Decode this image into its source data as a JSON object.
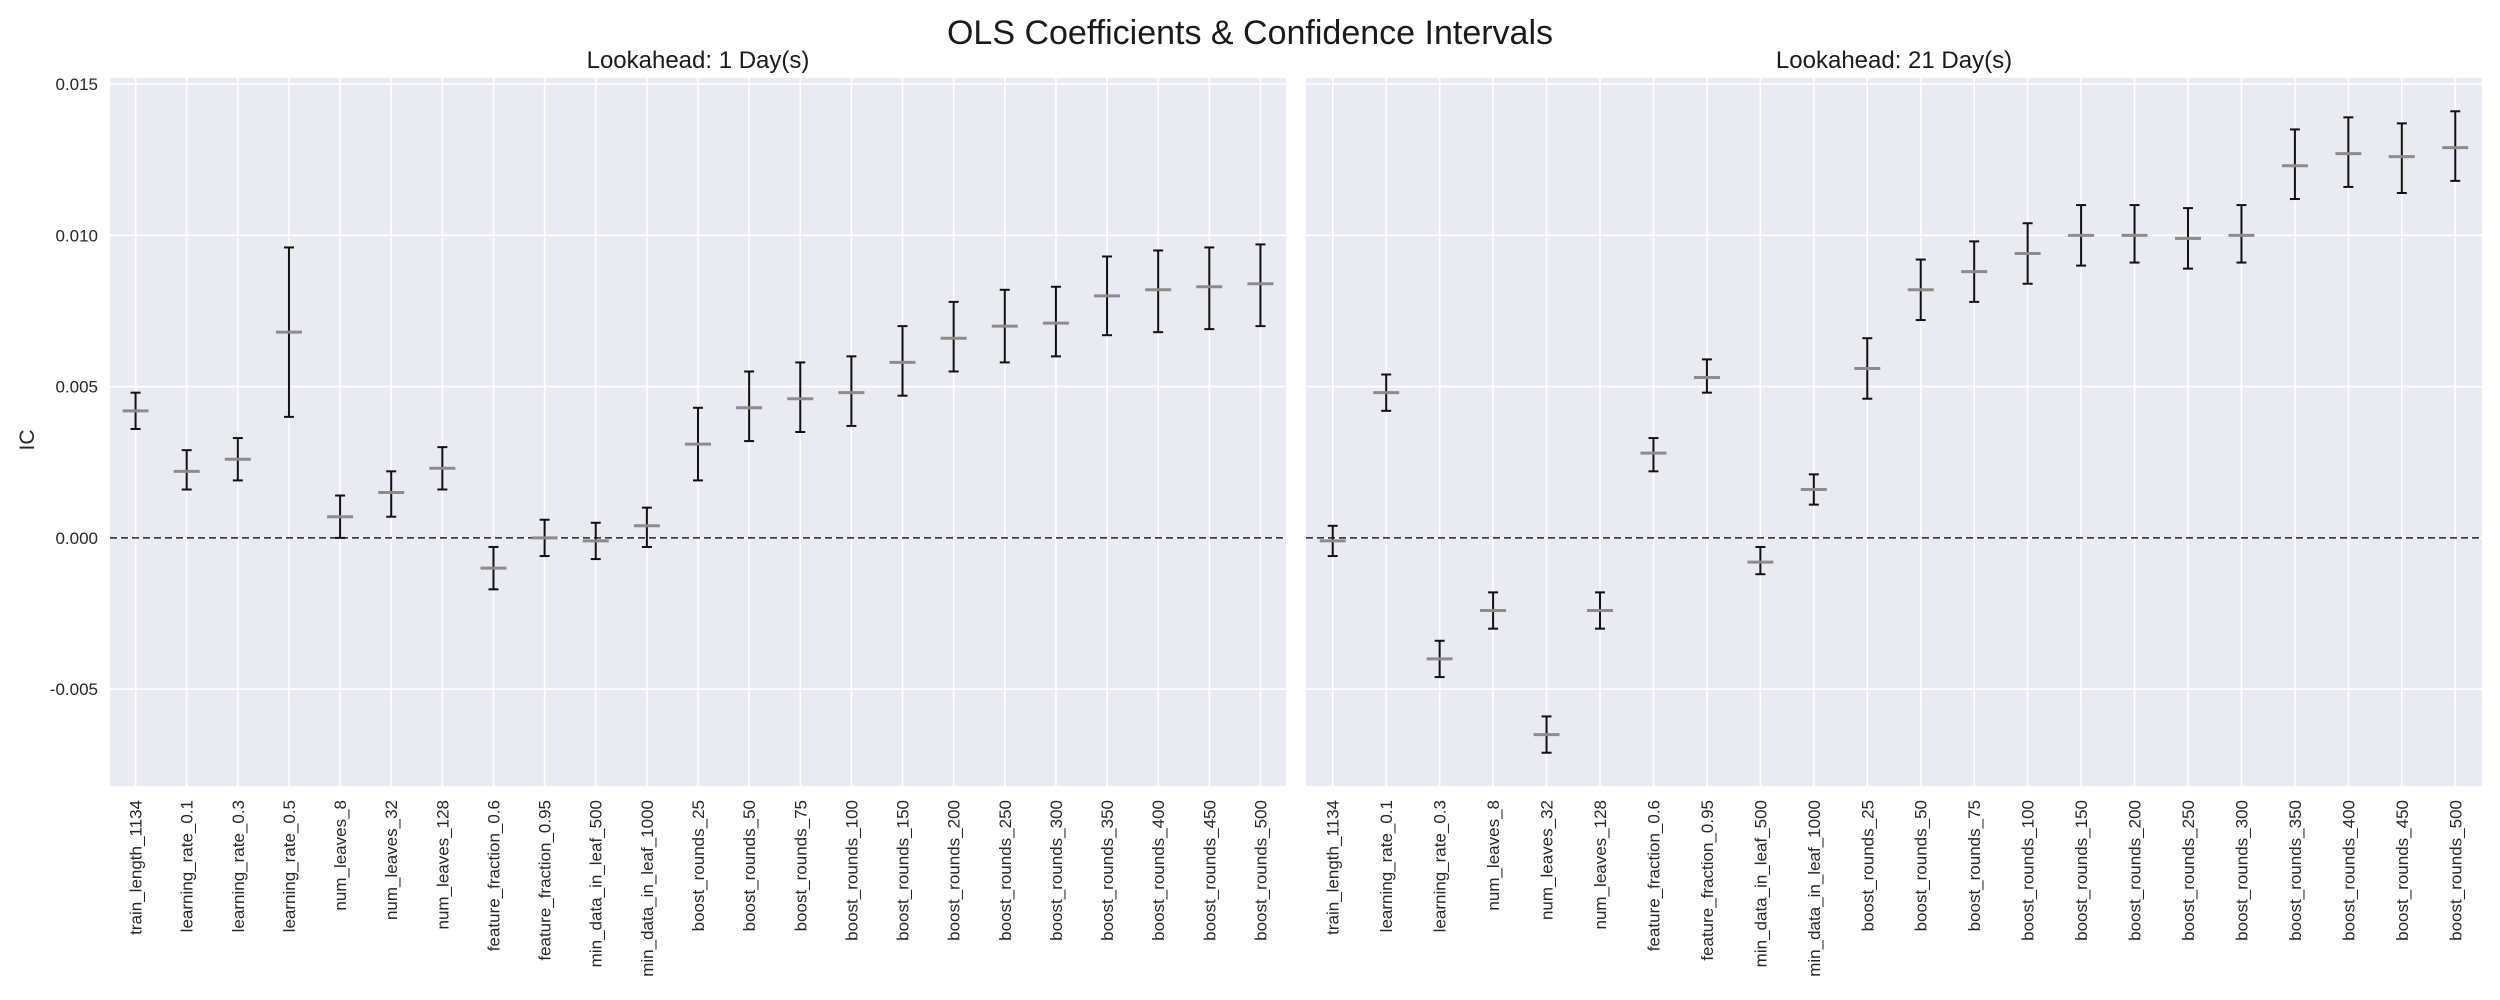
{
  "figure": {
    "title": "OLS Coefficients & Confidence Intervals"
  },
  "chart_data": [
    {
      "type": "errorbar",
      "title": "Lookahead: 1 Day(s)",
      "xlabel": "",
      "ylabel": "IC",
      "ylim": [
        -0.0082,
        0.0152
      ],
      "yticks": [
        "-0.005",
        "0.000",
        "0.005",
        "0.010",
        "0.015"
      ],
      "yticks_values": [
        -0.005,
        0.0,
        0.005,
        0.01,
        0.015
      ],
      "grid": true,
      "reference_line": 0.0,
      "categories": [
        "train_length_1134",
        "learning_rate_0.1",
        "learning_rate_0.3",
        "learning_rate_0.5",
        "num_leaves_8",
        "num_leaves_32",
        "num_leaves_128",
        "feature_fraction_0.6",
        "feature_fraction_0.95",
        "min_data_in_leaf_500",
        "min_data_in_leaf_1000",
        "boost_rounds_25",
        "boost_rounds_50",
        "boost_rounds_75",
        "boost_rounds_100",
        "boost_rounds_150",
        "boost_rounds_200",
        "boost_rounds_250",
        "boost_rounds_300",
        "boost_rounds_350",
        "boost_rounds_400",
        "boost_rounds_450",
        "boost_rounds_500"
      ],
      "coef": [
        0.0042,
        0.0022,
        0.0026,
        0.0068,
        0.0007,
        0.0015,
        0.0023,
        -0.001,
        0.0,
        -0.0001,
        0.0004,
        0.0031,
        0.0043,
        0.0046,
        0.0048,
        0.0058,
        0.0066,
        0.007,
        0.0071,
        0.008,
        0.0082,
        0.0083,
        0.0084
      ],
      "lower": [
        0.0036,
        0.0016,
        0.0019,
        0.004,
        0.0,
        0.0007,
        0.0016,
        -0.0017,
        -0.0006,
        -0.0007,
        -0.0003,
        0.0019,
        0.0032,
        0.0035,
        0.0037,
        0.0047,
        0.0055,
        0.0058,
        0.006,
        0.0067,
        0.0068,
        0.0069,
        0.007
      ],
      "upper": [
        0.0048,
        0.0029,
        0.0033,
        0.0096,
        0.0014,
        0.0022,
        0.003,
        -0.0003,
        0.0006,
        0.0005,
        0.001,
        0.0043,
        0.0055,
        0.0058,
        0.006,
        0.007,
        0.0078,
        0.0082,
        0.0083,
        0.0093,
        0.0095,
        0.0096,
        0.0097
      ]
    },
    {
      "type": "errorbar",
      "title": "Lookahead: 21 Day(s)",
      "xlabel": "",
      "ylabel": "",
      "ylim": [
        -0.0082,
        0.0152
      ],
      "yticks": [
        "-0.005",
        "0.000",
        "0.005",
        "0.010",
        "0.015"
      ],
      "yticks_values": [
        -0.005,
        0.0,
        0.005,
        0.01,
        0.015
      ],
      "grid": true,
      "reference_line": 0.0,
      "categories": [
        "train_length_1134",
        "learning_rate_0.1",
        "learning_rate_0.3",
        "num_leaves_8",
        "num_leaves_32",
        "num_leaves_128",
        "feature_fraction_0.6",
        "feature_fraction_0.95",
        "min_data_in_leaf_500",
        "min_data_in_leaf_1000",
        "boost_rounds_25",
        "boost_rounds_50",
        "boost_rounds_75",
        "boost_rounds_100",
        "boost_rounds_150",
        "boost_rounds_200",
        "boost_rounds_250",
        "boost_rounds_300",
        "boost_rounds_350",
        "boost_rounds_400",
        "boost_rounds_450",
        "boost_rounds_500"
      ],
      "coef": [
        -0.0001,
        0.0048,
        -0.004,
        -0.0024,
        -0.0065,
        -0.0024,
        0.0028,
        0.0053,
        -0.0008,
        0.0016,
        0.0056,
        0.0082,
        0.0088,
        0.0094,
        0.01,
        0.01,
        0.0099,
        0.01,
        0.0123,
        0.0127,
        0.0126,
        0.0129
      ],
      "lower": [
        -0.0006,
        0.0042,
        -0.0046,
        -0.003,
        -0.0071,
        -0.003,
        0.0022,
        0.0048,
        -0.0012,
        0.0011,
        0.0046,
        0.0072,
        0.0078,
        0.0084,
        0.009,
        0.0091,
        0.0089,
        0.0091,
        0.0112,
        0.0116,
        0.0114,
        0.0118
      ],
      "upper": [
        0.0004,
        0.0054,
        -0.0034,
        -0.0018,
        -0.0059,
        -0.0018,
        0.0033,
        0.0059,
        -0.0003,
        0.0021,
        0.0066,
        0.0092,
        0.0098,
        0.0104,
        0.011,
        0.011,
        0.0109,
        0.011,
        0.0135,
        0.0139,
        0.0137,
        0.0141
      ]
    }
  ]
}
